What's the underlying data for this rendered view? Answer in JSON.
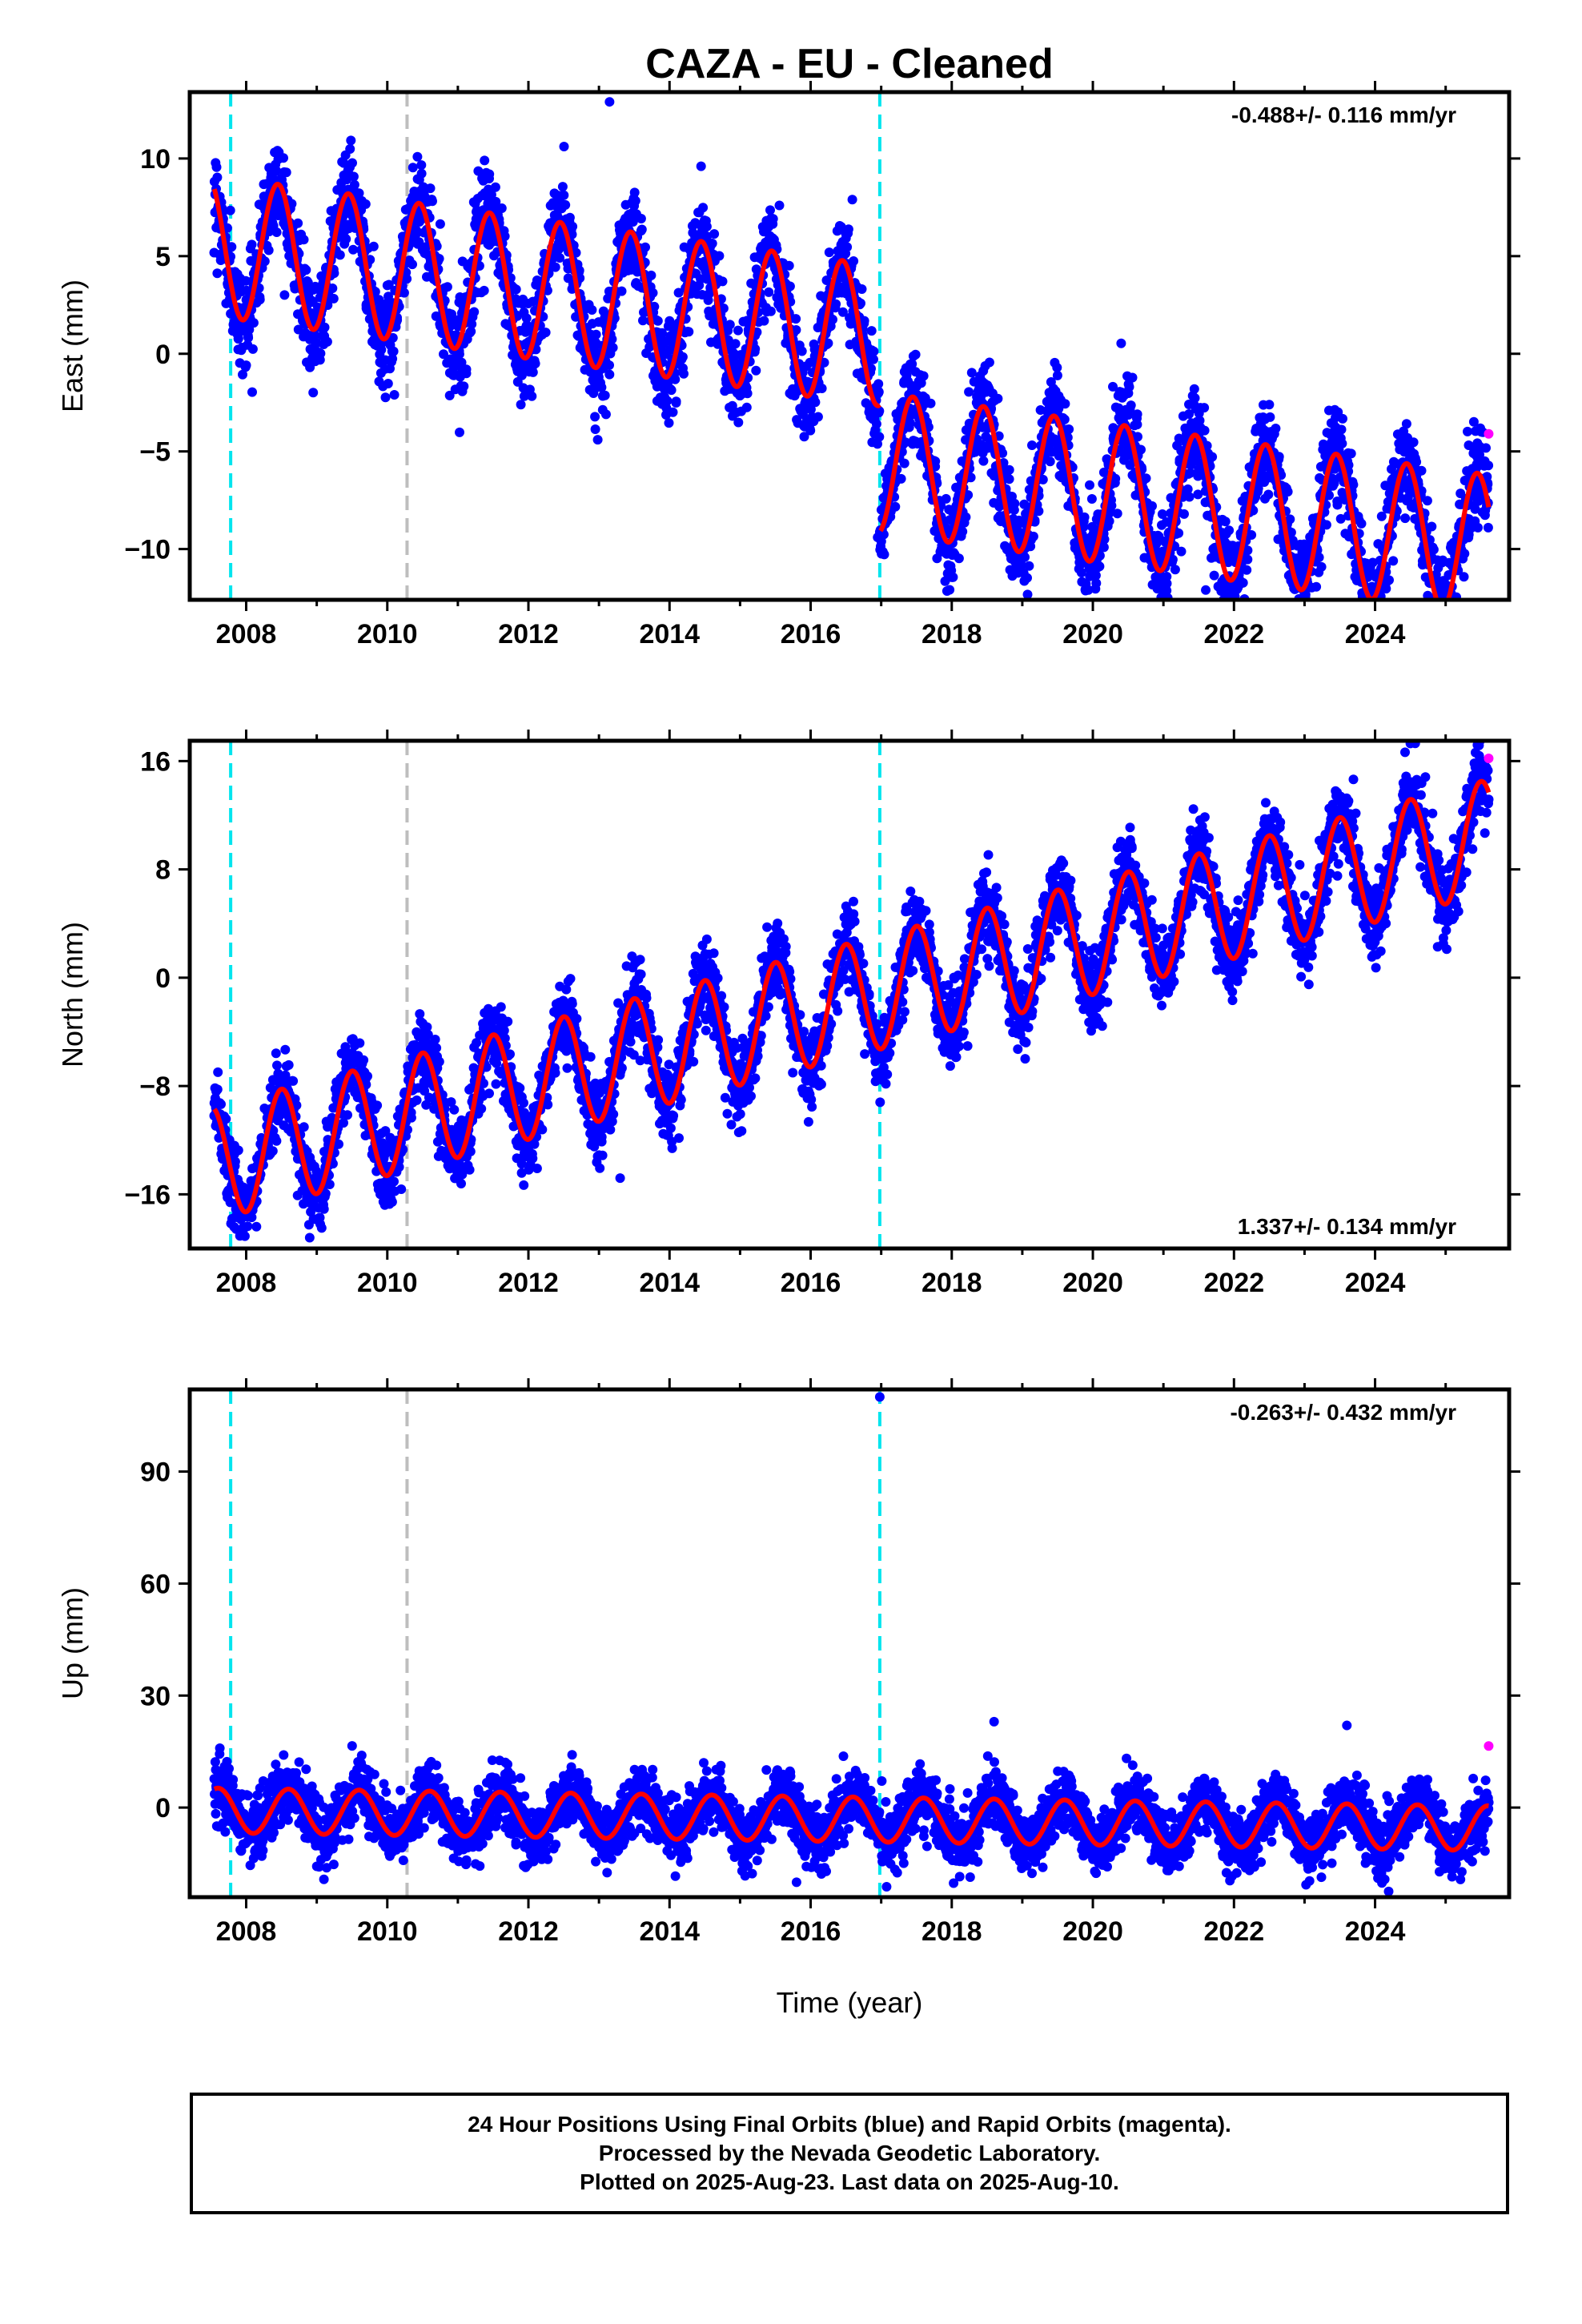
{
  "chart_data": {
    "title": "CAZA  - EU - Cleaned",
    "type": "scatter",
    "xlabel": "Time (year)",
    "xlim": [
      2007.2,
      2025.9
    ],
    "x_ticks": [
      "2008",
      "2010",
      "2012",
      "2014",
      "2016",
      "2018",
      "2020",
      "2022",
      "2024"
    ],
    "series_colors": {
      "final_orbits": "#0000ff",
      "rapid_orbits": "#ff00ff",
      "model_fit": "#ff0000"
    },
    "event_lines": [
      {
        "x": 2007.78,
        "color": "#00e5ee",
        "style": "dashed"
      },
      {
        "x": 2010.28,
        "color": "#bebebe",
        "style": "dashed"
      },
      {
        "x": 2016.98,
        "color": "#00e5ee",
        "style": "dashed"
      }
    ],
    "panels": [
      {
        "id": "east",
        "ylabel": "East (mm)",
        "ylim": [
          -12.6,
          13.4
        ],
        "y_ticks": [
          10,
          5,
          0,
          -5,
          -10
        ],
        "y_tick_labels": [
          "10",
          "5",
          "0",
          "−5",
          "−10"
        ],
        "rate_label": "-0.488+/- 0.116 mm/yr",
        "rate_position": "top-right",
        "model": {
          "trend": -0.488,
          "offset_at_2016": 1.4,
          "amplitude": 3.6,
          "peak_phase": 0.45,
          "steps": [
            {
              "x": 2016.98,
              "dy": -6.5
            }
          ]
        },
        "noise_sd": 1.2,
        "outliers": [
          {
            "x": 2013.15,
            "y": 12.9
          },
          {
            "x": 2021.6,
            "y": -12.1
          },
          {
            "x": 2016.95,
            "y": -9.4
          },
          {
            "x": 2010.1,
            "y": -2.1
          },
          {
            "x": 2013.1,
            "y": -3.1
          }
        ],
        "rapid_points": [
          {
            "x": 2025.61,
            "y": -4.1
          }
        ]
      },
      {
        "id": "north",
        "ylabel": "North (mm)",
        "ylim": [
          -20,
          17.5
        ],
        "y_ticks": [
          16,
          8,
          0,
          -8,
          -16
        ],
        "y_tick_labels": [
          "16",
          "8",
          "0",
          "−8",
          "−16"
        ],
        "rate_label": "1.337+/- 0.134 mm/yr",
        "rate_position": "bottom-right",
        "model": {
          "trend": 1.337,
          "offset_at_2016": -2.4,
          "amplitude": 4.2,
          "peak_phase": 0.5,
          "steps": []
        },
        "noise_sd": 1.4,
        "outliers": [
          {
            "x": 2013.3,
            "y": -14.8
          },
          {
            "x": 2024.5,
            "y": 17.3
          },
          {
            "x": 2008.9,
            "y": -19.2
          }
        ],
        "rapid_points": [
          {
            "x": 2025.61,
            "y": 16.2
          }
        ]
      },
      {
        "id": "up",
        "ylabel": "Up (mm)",
        "ylim": [
          -24,
          112
        ],
        "y_ticks": [
          90,
          60,
          30,
          0
        ],
        "y_tick_labels": [
          "90",
          "60",
          "30",
          "0"
        ],
        "rate_label": "-0.263+/- 0.432 mm/yr",
        "rate_position": "top-right",
        "model": {
          "trend": -0.263,
          "offset_at_2016": -3.0,
          "amplitude": 6.0,
          "peak_phase": 0.6,
          "steps": []
        },
        "noise_sd": 4.0,
        "outliers": [
          {
            "x": 2016.98,
            "y": 110
          },
          {
            "x": 2015.8,
            "y": -20
          },
          {
            "x": 2018.6,
            "y": 23
          },
          {
            "x": 2023.6,
            "y": 22
          }
        ],
        "rapid_points": [
          {
            "x": 2025.61,
            "y": 16.5
          }
        ]
      }
    ]
  },
  "footer": {
    "line1": "24 Hour Positions Using Final Orbits (blue) and Rapid Orbits (magenta).",
    "line2": "Processed by the Nevada Geodetic Laboratory.",
    "line3": "Plotted on 2025-Aug-23. Last data on 2025-Aug-10."
  }
}
